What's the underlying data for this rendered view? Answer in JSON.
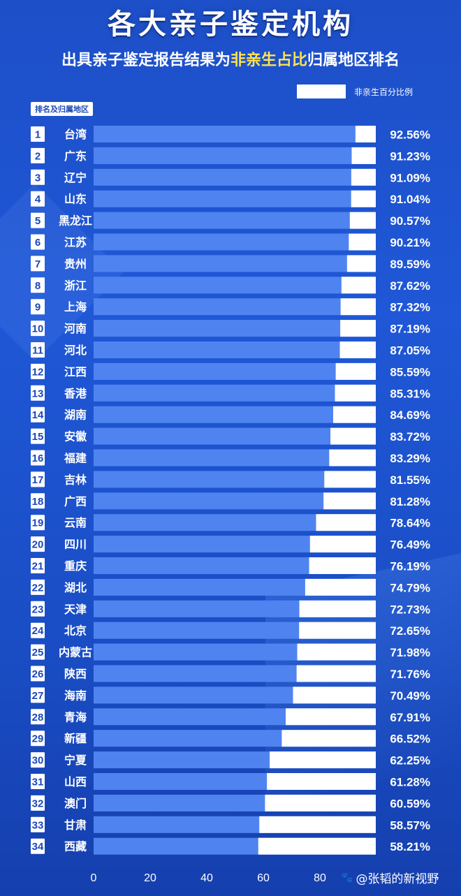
{
  "title": "各大亲子鉴定机构",
  "subtitle_pre": "出具亲子鉴定报告结果为",
  "subtitle_hl": "非亲生占比",
  "subtitle_post": "归属地区排名",
  "legend_label": "非亲生百分比例",
  "rank_header": "排名及归属地区",
  "watermark": "@张韬的新视野",
  "colors": {
    "bar_bg": "#4f84f0",
    "bar_fill": "#ffffff",
    "text": "#ffffff",
    "highlight": "#ffe44d"
  },
  "chart_data": {
    "type": "bar",
    "orientation": "horizontal",
    "ranks": [
      "1",
      "2",
      "3",
      "4",
      "5",
      "6",
      "7",
      "8",
      "9",
      "10",
      "11",
      "12",
      "13",
      "14",
      "15",
      "16",
      "17",
      "18",
      "19",
      "20",
      "21",
      "22",
      "23",
      "24",
      "25",
      "26",
      "27",
      "28",
      "29",
      "30",
      "31",
      "32",
      "33",
      "34"
    ],
    "categories": [
      "台湾",
      "广东",
      "辽宁",
      "山东",
      "黑龙江",
      "江苏",
      "贵州",
      "浙江",
      "上海",
      "河南",
      "河北",
      "江西",
      "香港",
      "湖南",
      "安徽",
      "福建",
      "吉林",
      "广西",
      "云南",
      "四川",
      "重庆",
      "湖北",
      "天津",
      "北京",
      "内蒙古",
      "陕西",
      "海南",
      "青海",
      "新疆",
      "宁夏",
      "山西",
      "澳门",
      "甘肃",
      "西藏"
    ],
    "values": [
      92.56,
      91.23,
      91.09,
      91.04,
      90.57,
      90.21,
      89.59,
      87.62,
      87.32,
      87.19,
      87.05,
      85.59,
      85.31,
      84.69,
      83.72,
      83.29,
      81.55,
      81.28,
      78.64,
      76.49,
      76.19,
      74.79,
      72.73,
      72.65,
      71.98,
      71.76,
      70.49,
      67.91,
      66.52,
      62.25,
      61.28,
      60.59,
      58.57,
      58.21
    ],
    "value_labels": [
      "92.56%",
      "91.23%",
      "91.09%",
      "91.04%",
      "90.57%",
      "90.21%",
      "89.59%",
      "87.62%",
      "87.32%",
      "87.19%",
      "87.05%",
      "85.59%",
      "85.31%",
      "84.69%",
      "83.72%",
      "83.29%",
      "81.55%",
      "81.28%",
      "78.64%",
      "76.49%",
      "76.19%",
      "74.79%",
      "72.73%",
      "72.65%",
      "71.98%",
      "71.76%",
      "70.49%",
      "67.91%",
      "66.52%",
      "62.25%",
      "61.28%",
      "60.59%",
      "58.57%",
      "58.21%"
    ],
    "x_ticks": [
      "0",
      "20",
      "40",
      "60",
      "80"
    ],
    "xlim": [
      0,
      100
    ]
  }
}
